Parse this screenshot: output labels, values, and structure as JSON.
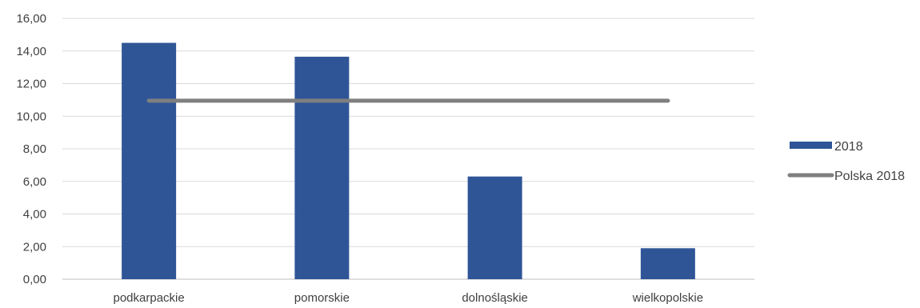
{
  "chart_data": {
    "type": "bar",
    "categories": [
      "podkarpackie",
      "pomorskie",
      "dolnośląskie",
      "wielkopolskie"
    ],
    "series": [
      {
        "name": "2018",
        "kind": "bar",
        "color": "#2f5597",
        "values": [
          14.5,
          13.65,
          6.3,
          1.9
        ]
      },
      {
        "name": "Polska 2018",
        "kind": "line",
        "color": "#7f7f7f",
        "values": [
          10.95,
          10.95,
          10.95,
          10.95
        ]
      }
    ],
    "y_ticks": [
      "0,00",
      "2,00",
      "4,00",
      "6,00",
      "8,00",
      "10,00",
      "12,00",
      "14,00",
      "16,00"
    ],
    "ylim": [
      0,
      16
    ],
    "grid": true,
    "legend_position": "right",
    "title": "",
    "xlabel": "",
    "ylabel": ""
  }
}
